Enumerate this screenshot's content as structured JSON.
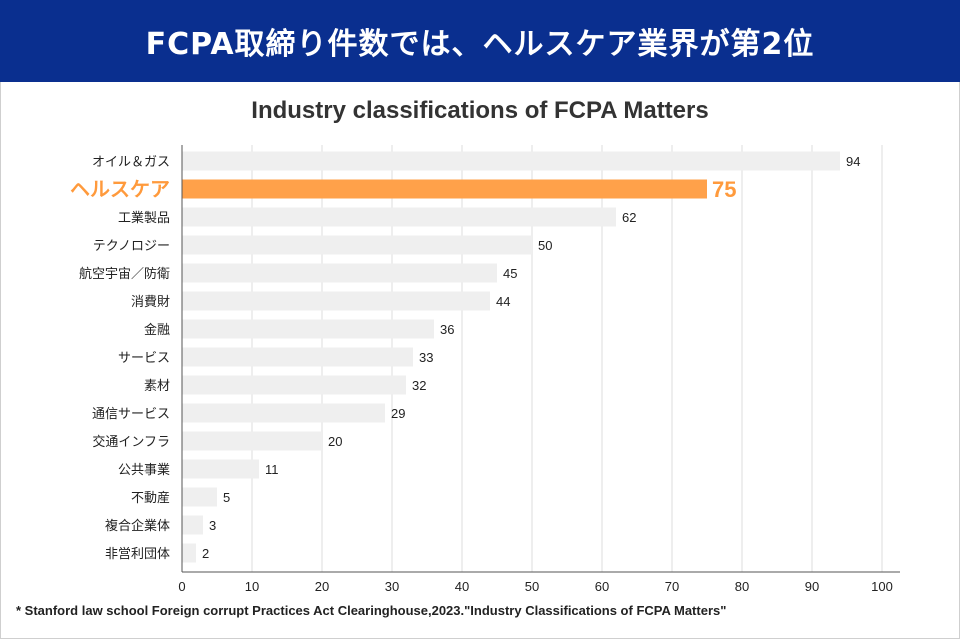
{
  "banner": {
    "title": "FCPA取締り件数では、ヘルスケア業界が第2位"
  },
  "colors": {
    "banner": "#0a2f8f",
    "bar": "#efefef",
    "highlight": "#ffa14a",
    "highlight_text": "#ff9a3c"
  },
  "chart_data": {
    "type": "bar",
    "orientation": "horizontal",
    "title": "Industry classifications of FCPA Matters",
    "categories": [
      "オイル＆ガス",
      "ヘルスケア",
      "工業製品",
      "テクノロジー",
      "航空宇宙／防衛",
      "消費財",
      "金融",
      "サービス",
      "素材",
      "通信サービス",
      "交通インフラ",
      "公共事業",
      "不動産",
      "複合企業体",
      "非営利団体"
    ],
    "values": [
      94,
      75,
      62,
      50,
      45,
      44,
      36,
      33,
      32,
      29,
      20,
      11,
      5,
      3,
      2
    ],
    "highlight_index": 1,
    "xlim": [
      0,
      100
    ],
    "xticks": [
      0,
      10,
      20,
      30,
      40,
      50,
      60,
      70,
      80,
      90,
      100
    ],
    "grid": true,
    "xlabel": "",
    "ylabel": ""
  },
  "footnote": "* Stanford law school Foreign corrupt Practices Act Clearinghouse,2023.\"Industry Classifications of FCPA Matters\""
}
